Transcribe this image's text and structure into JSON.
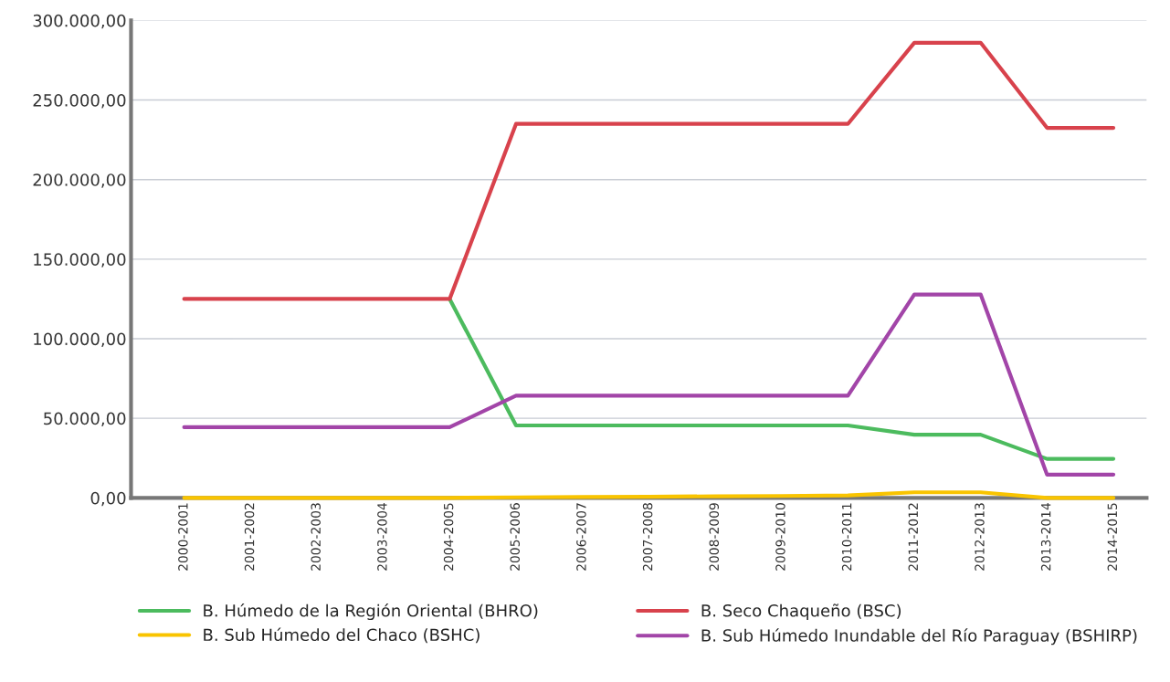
{
  "chart_data": {
    "type": "line",
    "categories": [
      "2000-2001",
      "2001-2002",
      "2002-2003",
      "2003-2004",
      "2004-2005",
      "2005-2006",
      "2006-2007",
      "2007-2008",
      "2008-2009",
      "2009-2010",
      "2010-2011",
      "2011-2012",
      "2012-2013",
      "2013-2014",
      "2014-2015"
    ],
    "series": [
      {
        "name": "B. Húmedo de la Región Oriental (BHRO)",
        "color": "#4cbb5e",
        "values": [
          null,
          null,
          null,
          null,
          125000,
          45500,
          45500,
          45500,
          45500,
          45500,
          45500,
          39700,
          39700,
          24500,
          24500
        ]
      },
      {
        "name": "B. Seco Chaqueño (BSC)",
        "color": "#d8424c",
        "values": [
          125000,
          125000,
          125000,
          125000,
          125000,
          235000,
          235000,
          235000,
          235000,
          235000,
          235000,
          286000,
          286000,
          232500,
          232500
        ]
      },
      {
        "name": "B. Sub Húmedo del Chaco (BSHC)",
        "color": "#f9c400",
        "values": [
          0,
          0,
          0,
          0,
          0,
          300,
          500,
          700,
          1000,
          1200,
          1500,
          3500,
          3500,
          0,
          0
        ]
      },
      {
        "name": "B. Sub Húmedo Inundable del Río Paraguay (BSHIRP)",
        "color": "#a245a8",
        "values": [
          44400,
          44400,
          44400,
          44400,
          44400,
          64200,
          64200,
          64200,
          64200,
          64200,
          64200,
          127800,
          127800,
          14600,
          14600
        ]
      }
    ],
    "ylim": [
      0,
      300000
    ],
    "yticks": [
      {
        "value": 0,
        "label": "0,00"
      },
      {
        "value": 50000,
        "label": "50.000,00"
      },
      {
        "value": 100000,
        "label": "100.000,00"
      },
      {
        "value": 150000,
        "label": "150.000,00"
      },
      {
        "value": 200000,
        "label": "200.000,00"
      },
      {
        "value": 250000,
        "label": "250.000,00"
      },
      {
        "value": 300000,
        "label": "300.000,00"
      }
    ],
    "grid": "y",
    "legend": "bottom",
    "line_style": "solid"
  }
}
